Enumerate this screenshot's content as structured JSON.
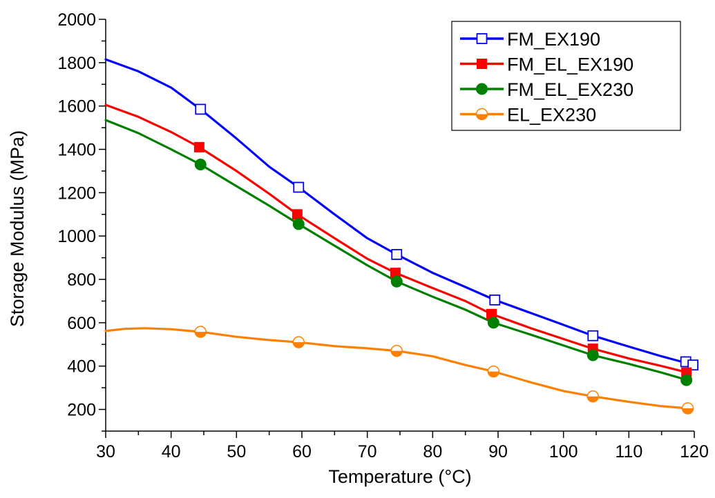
{
  "chart_data": {
    "type": "line",
    "title": "",
    "xlabel": "Temperature (°C)",
    "ylabel": "Storage Modulus (MPa)",
    "xlim": [
      30,
      120
    ],
    "ylim": [
      100,
      2000
    ],
    "xticks": [
      30,
      40,
      50,
      60,
      70,
      80,
      90,
      100,
      110,
      120
    ],
    "yticks": [
      200,
      400,
      600,
      800,
      1000,
      1200,
      1400,
      1600,
      1800,
      2000
    ],
    "grid": false,
    "legend_position": "top-right",
    "series": [
      {
        "name": "FM_EX190",
        "color": "#0000ff",
        "marker": "square-open",
        "x": [
          30,
          35,
          40,
          44.5,
          50,
          55,
          59.5,
          65,
          70,
          74.5,
          80,
          85,
          89.5,
          95,
          100,
          104.5,
          110,
          115,
          118.7,
          119.5
        ],
        "y": [
          1815,
          1760,
          1685,
          1585,
          1450,
          1320,
          1225,
          1100,
          990,
          915,
          830,
          765,
          705,
          645,
          590,
          540,
          490,
          445,
          415,
          410
        ],
        "markers_x": [
          44.5,
          59.5,
          74.5,
          89.5,
          104.5,
          118.7,
          119.8
        ],
        "markers_y": [
          1585,
          1225,
          915,
          705,
          540,
          420,
          405
        ]
      },
      {
        "name": "FM_EL_EX190",
        "color": "#ff0000",
        "marker": "square-filled",
        "x": [
          30,
          35,
          40,
          44.3,
          50,
          55,
          59.3,
          65,
          70,
          74.3,
          80,
          85,
          89,
          95,
          100,
          104.5,
          110,
          115,
          119
        ],
        "y": [
          1605,
          1550,
          1480,
          1410,
          1300,
          1195,
          1100,
          990,
          895,
          830,
          760,
          700,
          640,
          575,
          525,
          480,
          435,
          400,
          370
        ],
        "markers_x": [
          44.3,
          59.3,
          74.3,
          89,
          104.5,
          118.8
        ],
        "markers_y": [
          1410,
          1100,
          830,
          640,
          480,
          370
        ]
      },
      {
        "name": "FM_EL_EX230",
        "color": "#008000",
        "marker": "circle-filled",
        "x": [
          30,
          35,
          40,
          44.5,
          50,
          55,
          59.5,
          65,
          70,
          74.5,
          80,
          85,
          89.3,
          95,
          100,
          104.5,
          110,
          115,
          119
        ],
        "y": [
          1535,
          1475,
          1400,
          1330,
          1230,
          1140,
          1055,
          955,
          865,
          790,
          720,
          660,
          600,
          545,
          495,
          450,
          410,
          370,
          335
        ],
        "markers_x": [
          44.5,
          59.5,
          74.5,
          89.3,
          104.5,
          118.8
        ],
        "markers_y": [
          1330,
          1055,
          790,
          600,
          450,
          335
        ]
      },
      {
        "name": "EL_EX230",
        "color": "#ff8000",
        "marker": "circle-half",
        "x": [
          30,
          33,
          36,
          40,
          44.5,
          50,
          55,
          59.5,
          65,
          70,
          74.5,
          80,
          85,
          89.3,
          95,
          100,
          104.5,
          110,
          115,
          119
        ],
        "y": [
          562,
          572,
          575,
          570,
          558,
          535,
          520,
          510,
          492,
          482,
          470,
          445,
          405,
          375,
          325,
          285,
          260,
          235,
          215,
          205
        ],
        "markers_x": [
          44.5,
          59.5,
          74.5,
          89.3,
          104.5,
          119
        ],
        "markers_y": [
          558,
          510,
          470,
          375,
          260,
          205
        ]
      }
    ]
  }
}
